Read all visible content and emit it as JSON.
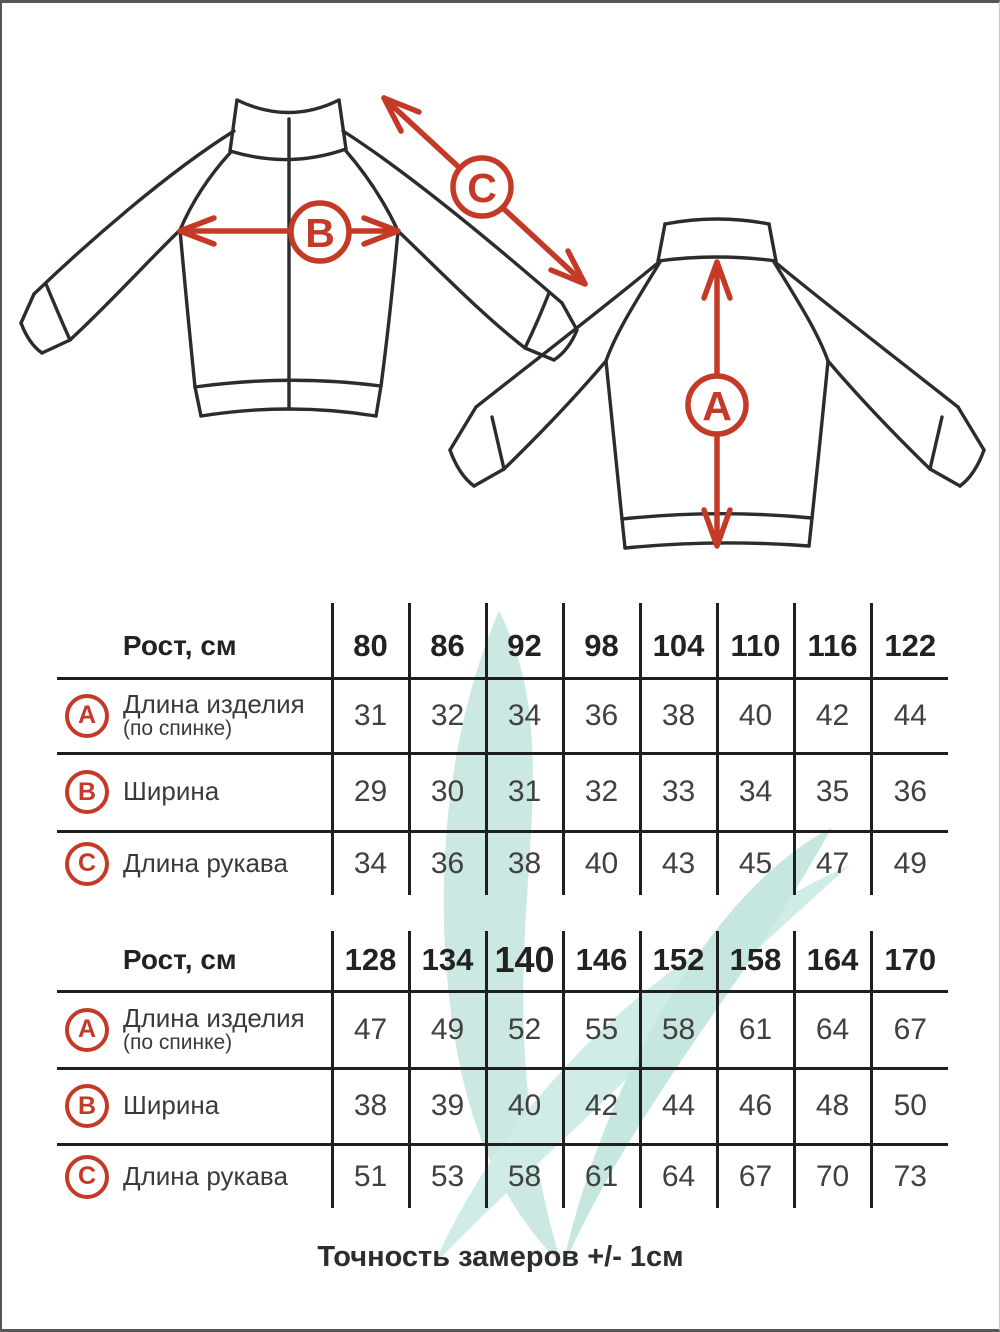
{
  "diagram": {
    "labels": {
      "a": "A",
      "b": "B",
      "c": "C"
    },
    "outline_color": "#2c2c2a",
    "accent_color": "#c43a27"
  },
  "tables": [
    {
      "header_label": "Рост, см",
      "columns": [
        "80",
        "86",
        "92",
        "98",
        "104",
        "110",
        "116",
        "122"
      ],
      "rows": [
        {
          "letter": "A",
          "label": "Длина изделия",
          "sublabel": "(по спинке)",
          "values": [
            "31",
            "32",
            "34",
            "36",
            "38",
            "40",
            "42",
            "44"
          ]
        },
        {
          "letter": "B",
          "label": "Ширина",
          "sublabel": "",
          "values": [
            "29",
            "30",
            "31",
            "32",
            "33",
            "34",
            "35",
            "36"
          ]
        },
        {
          "letter": "C",
          "label": "Длина рукава",
          "sublabel": "",
          "values": [
            "34",
            "36",
            "38",
            "40",
            "43",
            "45",
            "47",
            "49"
          ]
        }
      ]
    },
    {
      "header_label": "Рост, см",
      "columns": [
        "128",
        "134",
        "140",
        "146",
        "152",
        "158",
        "164",
        "170"
      ],
      "emphasized_column": 2,
      "rows": [
        {
          "letter": "A",
          "label": "Длина изделия",
          "sublabel": "(по спинке)",
          "values": [
            "47",
            "49",
            "52",
            "55",
            "58",
            "61",
            "64",
            "67"
          ]
        },
        {
          "letter": "B",
          "label": "Ширина",
          "sublabel": "",
          "values": [
            "38",
            "39",
            "40",
            "42",
            "44",
            "46",
            "48",
            "50"
          ]
        },
        {
          "letter": "C",
          "label": "Длина рукава",
          "sublabel": "",
          "values": [
            "51",
            "53",
            "58",
            "61",
            "64",
            "67",
            "70",
            "73"
          ]
        }
      ]
    }
  ],
  "note": "Точность замеров +/- 1см",
  "watermark_color": "#cbe9e2"
}
